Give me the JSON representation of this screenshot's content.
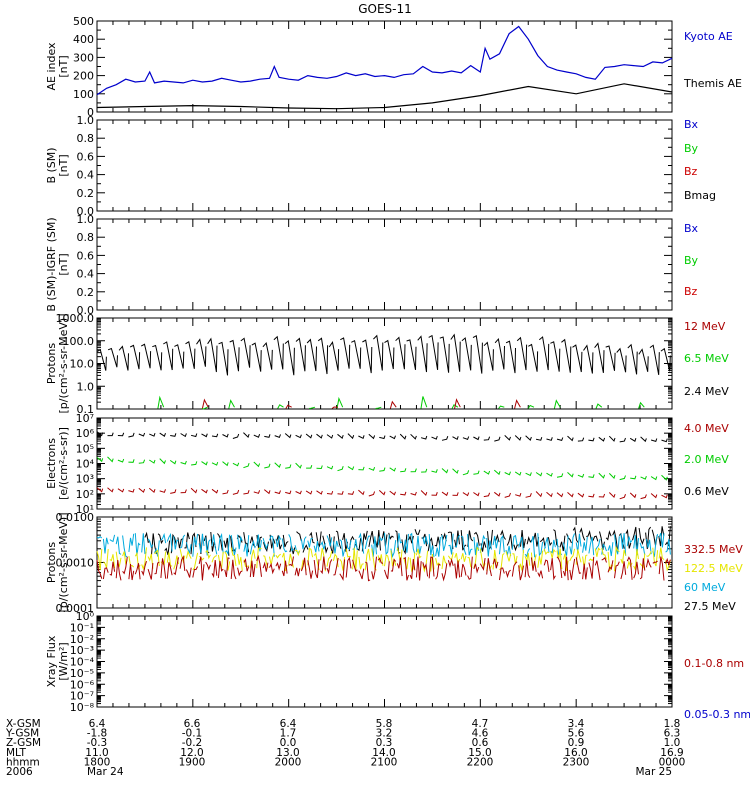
{
  "title": "GOES-11",
  "panels": [
    {
      "id": "ae",
      "ylabel": [
        "AE index",
        "[nT]"
      ],
      "ticks": [
        "0",
        "100",
        "200",
        "300",
        "400",
        "500"
      ],
      "log": false,
      "ylim": [
        0,
        500
      ],
      "legend": [
        {
          "label": "Kyoto AE",
          "color": "#0000cc"
        },
        {
          "label": "Themis AE",
          "color": "#000000"
        }
      ]
    },
    {
      "id": "b-sm",
      "ylabel": [
        "B (SM)",
        "[nT]"
      ],
      "ticks": [
        "0.0",
        "0.2",
        "0.4",
        "0.6",
        "0.8",
        "1.0"
      ],
      "log": false,
      "ylim": [
        0,
        1
      ],
      "legend": [
        {
          "label": "Bx",
          "color": "#0000cc"
        },
        {
          "label": "By",
          "color": "#00cc00"
        },
        {
          "label": "Bz",
          "color": "#cc0000"
        },
        {
          "label": "Bmag",
          "color": "#000000"
        }
      ]
    },
    {
      "id": "b-igrf",
      "ylabel": [
        "B (SM)-IGRF (SM)",
        "[nT]"
      ],
      "ticks": [
        "0.0",
        "0.2",
        "0.4",
        "0.6",
        "0.8",
        "1.0"
      ],
      "log": false,
      "ylim": [
        0,
        1
      ],
      "legend": [
        {
          "label": "Bx",
          "color": "#0000cc"
        },
        {
          "label": "By",
          "color": "#00cc00"
        },
        {
          "label": "Bz",
          "color": "#cc0000"
        }
      ]
    },
    {
      "id": "protons-low",
      "ylabel": [
        "Protons",
        "[p/(cm²-s-sr-MeV)]"
      ],
      "ticks": [
        "0.1",
        "1.0",
        "10.0",
        "100.0",
        "1000.0"
      ],
      "log": true,
      "ylim": [
        0.1,
        1000
      ],
      "legend": [
        {
          "label": "12 MeV",
          "color": "#aa0000"
        },
        {
          "label": "6.5 MeV",
          "color": "#00cc00"
        },
        {
          "label": "2.4 MeV",
          "color": "#000000"
        }
      ]
    },
    {
      "id": "electrons",
      "ylabel": [
        "Electrons",
        "[e/(cm²-s-sr)]"
      ],
      "ticks": [
        "10¹",
        "10²",
        "10³",
        "10⁴",
        "10⁵",
        "10⁶",
        "10⁷"
      ],
      "log": true,
      "ylim": [
        10,
        10000000
      ],
      "legend": [
        {
          "label": "4.0 MeV",
          "color": "#aa0000"
        },
        {
          "label": "2.0 MeV",
          "color": "#00cc00"
        },
        {
          "label": "0.6 MeV",
          "color": "#000000"
        }
      ]
    },
    {
      "id": "protons-high",
      "ylabel": [
        "Protons",
        "[p/(cm²-s-sr-MeV)]"
      ],
      "ticks": [
        "0.0001",
        "0.0010",
        "0.0100"
      ],
      "log": true,
      "ylim": [
        0.0001,
        0.1
      ],
      "legend": [
        {
          "label": "332.5 MeV",
          "color": "#aa0000"
        },
        {
          "label": "122.5 MeV",
          "color": "#e6e600"
        },
        {
          "label": "60 MeV",
          "color": "#00aadd"
        },
        {
          "label": "27.5 MeV",
          "color": "#000000"
        }
      ]
    },
    {
      "id": "xray",
      "ylabel": [
        "Xray Flux",
        "[W/m²]"
      ],
      "ticks": [
        "10⁻⁸",
        "10⁻⁷",
        "10⁻⁶",
        "10⁻⁵",
        "10⁻⁴",
        "10⁻³",
        "10⁻²",
        "10⁻¹",
        "10⁰"
      ],
      "log": true,
      "ylim": [
        1e-08,
        1
      ],
      "legend": [
        {
          "label": "0.1-0.8 nm",
          "color": "#aa0000"
        },
        {
          "label": "0.05-0.3 nm",
          "color": "#0000cc"
        }
      ]
    }
  ],
  "ephemeris": {
    "rows": [
      {
        "label": "X-GSM",
        "values": [
          "6.4",
          "6.6",
          "6.4",
          "5.8",
          "4.7",
          "3.4",
          "1.8"
        ]
      },
      {
        "label": "Y-GSM",
        "values": [
          "-1.8",
          "-0.1",
          "1.7",
          "3.2",
          "4.6",
          "5.6",
          "6.3"
        ]
      },
      {
        "label": "Z-GSM",
        "values": [
          "-0.3",
          "-0.2",
          "0.0",
          "0.3",
          "0.6",
          "0.9",
          "1.0"
        ]
      },
      {
        "label": "MLT",
        "values": [
          "11.0",
          "12.0",
          "13.0",
          "14.0",
          "15.0",
          "16.0",
          "16.9"
        ]
      },
      {
        "label": "hhmm",
        "values": [
          "1800",
          "1900",
          "2000",
          "2100",
          "2200",
          "2300",
          "0000"
        ]
      },
      {
        "label": "2006",
        "values": [
          "Mar 24",
          "",
          "",
          "",
          "",
          "",
          "Mar 25"
        ]
      }
    ]
  },
  "chart_data": [
    {
      "type": "line",
      "panel": "ae",
      "xlabel": "hhmm",
      "x_range": [
        "1800",
        "0000"
      ],
      "ylim": [
        0,
        500
      ],
      "series": [
        {
          "name": "Kyoto AE",
          "color": "#0000cc",
          "x": [
            18.0,
            18.1,
            18.2,
            18.3,
            18.4,
            18.5,
            18.55,
            18.6,
            18.7,
            18.8,
            18.9,
            19.0,
            19.1,
            19.2,
            19.3,
            19.4,
            19.5,
            19.6,
            19.7,
            19.8,
            19.85,
            19.9,
            20.0,
            20.1,
            20.2,
            20.3,
            20.4,
            20.5,
            20.6,
            20.7,
            20.8,
            20.9,
            21.0,
            21.1,
            21.2,
            21.3,
            21.4,
            21.5,
            21.6,
            21.7,
            21.8,
            21.9,
            22.0,
            22.05,
            22.1,
            22.2,
            22.3,
            22.4,
            22.5,
            22.6,
            22.7,
            22.8,
            22.9,
            23.0,
            23.1,
            23.2,
            23.3,
            23.4,
            23.5,
            23.6,
            23.7,
            23.8,
            23.9,
            24.0
          ],
          "y": [
            95,
            130,
            150,
            180,
            165,
            170,
            220,
            160,
            170,
            165,
            160,
            175,
            165,
            170,
            185,
            175,
            165,
            170,
            180,
            185,
            250,
            190,
            180,
            175,
            200,
            190,
            185,
            195,
            215,
            200,
            210,
            195,
            200,
            190,
            205,
            210,
            250,
            220,
            215,
            225,
            215,
            255,
            220,
            350,
            290,
            320,
            430,
            470,
            400,
            310,
            250,
            230,
            220,
            210,
            190,
            180,
            245,
            250,
            260,
            255,
            250,
            275,
            270,
            295
          ]
        },
        {
          "name": "Themis AE",
          "color": "#000000",
          "x": [
            18.0,
            18.5,
            19.0,
            19.5,
            20.0,
            20.5,
            21.0,
            21.5,
            22.0,
            22.5,
            23.0,
            23.5,
            24.0
          ],
          "y": [
            25,
            30,
            35,
            30,
            22,
            18,
            25,
            50,
            90,
            140,
            100,
            155,
            110
          ]
        }
      ]
    },
    {
      "type": "line",
      "panel": "b-sm",
      "ylim": [
        0,
        1
      ],
      "series": []
    },
    {
      "type": "line",
      "panel": "b-igrf",
      "ylim": [
        0,
        1
      ],
      "series": []
    },
    {
      "type": "line",
      "panel": "protons-low",
      "ylim": [
        0.1,
        1000
      ],
      "yscale": "log",
      "series": [
        {
          "name": "2.4 MeV",
          "color": "#000000",
          "pattern": "sawtooth",
          "count": 52,
          "x_range": [
            18.0,
            24.0
          ],
          "peak": [
            40,
            150,
            10
          ],
          "trough": [
            3,
            8,
            1
          ]
        },
        {
          "name": "6.5 MeV",
          "color": "#00cc00",
          "pattern": "spikes",
          "count": 14,
          "x_range": [
            18.6,
            23.9
          ],
          "level": [
            0.1,
            0.4
          ]
        },
        {
          "name": "12 MeV",
          "color": "#aa0000",
          "pattern": "spikes",
          "count": 6,
          "x_range": [
            19.1,
            22.9
          ],
          "level": [
            0.1,
            0.3
          ]
        }
      ]
    },
    {
      "type": "line",
      "panel": "electrons",
      "ylim": [
        10,
        10000000
      ],
      "yscale": "log",
      "series": [
        {
          "name": "0.6 MeV",
          "color": "#000000",
          "pattern": "dashes",
          "count": 55,
          "x_range": [
            18.0,
            24.0
          ],
          "level": [
            1000000,
            400000
          ]
        },
        {
          "name": "2.0 MeV",
          "color": "#00cc00",
          "pattern": "dashes",
          "count": 55,
          "x_range": [
            18.0,
            24.0
          ],
          "level": [
            20000,
            1200
          ]
        },
        {
          "name": "4.0 MeV",
          "color": "#aa0000",
          "pattern": "dashes",
          "count": 55,
          "x_range": [
            18.0,
            24.0
          ],
          "level": [
            200,
            80
          ]
        }
      ]
    },
    {
      "type": "line",
      "panel": "protons-high",
      "ylim": [
        0.0001,
        0.1
      ],
      "yscale": "log",
      "series": [
        {
          "name": "27.5 MeV",
          "color": "#000000",
          "pattern": "noise",
          "count": 80,
          "x_range": [
            18.5,
            24.0
          ],
          "level": [
            0.012,
            0.02
          ]
        },
        {
          "name": "60 MeV",
          "color": "#00aadd",
          "pattern": "noise",
          "count": 90,
          "x_range": [
            18.0,
            24.0
          ],
          "level": [
            0.012,
            0.012
          ]
        },
        {
          "name": "122.5 MeV",
          "color": "#e6e600",
          "pattern": "noise",
          "count": 90,
          "x_range": [
            18.0,
            24.0
          ],
          "level": [
            0.004,
            0.004
          ]
        },
        {
          "name": "332.5 MeV",
          "color": "#aa0000",
          "pattern": "noise",
          "count": 90,
          "x_range": [
            18.0,
            24.0
          ],
          "level": [
            0.002,
            0.002
          ]
        }
      ]
    },
    {
      "type": "line",
      "panel": "xray",
      "ylim": [
        1e-08,
        1
      ],
      "yscale": "log",
      "series": []
    }
  ]
}
